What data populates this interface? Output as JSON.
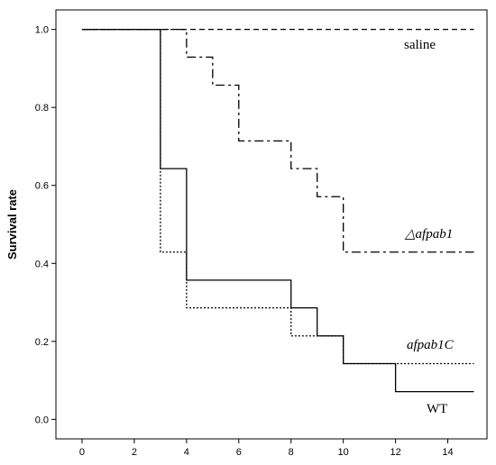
{
  "chart_data": {
    "type": "line",
    "step": true,
    "ylabel": "Survival rate",
    "xlabel": "",
    "xlim": [
      -1,
      15.5
    ],
    "ylim": [
      -0.05,
      1.05
    ],
    "xticks": [
      0,
      2,
      4,
      6,
      8,
      10,
      12,
      14
    ],
    "yticks": [
      0.0,
      0.2,
      0.4,
      0.6,
      0.8,
      1.0
    ],
    "xtick_labels": [
      "0",
      "2",
      "4",
      "6",
      "8",
      "10",
      "12",
      "14"
    ],
    "ytick_labels": [
      "0.0",
      "0.2",
      "0.4",
      "0.6",
      "0.8",
      "1.0"
    ],
    "grid": false,
    "series": [
      {
        "name": "saline",
        "style": "dashed",
        "x": [
          0,
          15
        ],
        "y": [
          1.0,
          1.0
        ]
      },
      {
        "name": "△afpab1",
        "style": "dashdot",
        "x": [
          0,
          3,
          4,
          5,
          6,
          8,
          9,
          10,
          15
        ],
        "y": [
          1.0,
          1.0,
          0.929,
          0.857,
          0.714,
          0.643,
          0.571,
          0.429,
          0.429
        ]
      },
      {
        "name": "afpab1C",
        "style": "dotted",
        "x": [
          0,
          3,
          4,
          8,
          10,
          15
        ],
        "y": [
          1.0,
          0.429,
          0.286,
          0.214,
          0.143,
          0.143
        ]
      },
      {
        "name": "WT",
        "style": "solid",
        "x": [
          0,
          3,
          4,
          8,
          9,
          10,
          12,
          15
        ],
        "y": [
          1.0,
          0.643,
          0.357,
          0.286,
          0.214,
          0.143,
          0.071,
          0.071
        ]
      }
    ]
  }
}
